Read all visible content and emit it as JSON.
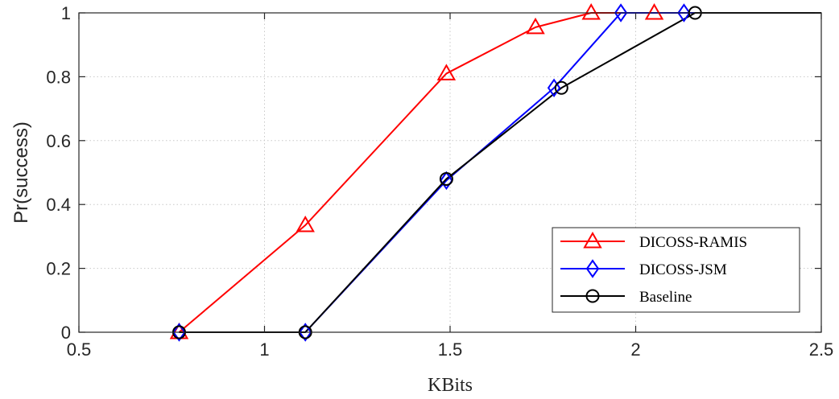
{
  "chart_data": {
    "type": "line",
    "title": "",
    "xlabel": "KBits",
    "ylabel": "Pr(success)",
    "xlim": [
      0.5,
      2.5
    ],
    "ylim": [
      0,
      1
    ],
    "xticks": [
      0.5,
      1,
      1.5,
      2,
      2.5
    ],
    "xtick_labels": [
      "0.5",
      "1",
      "1.5",
      "2",
      "2.5"
    ],
    "yticks": [
      0,
      0.2,
      0.4,
      0.6,
      0.8,
      1
    ],
    "ytick_labels": [
      "0",
      "0.2",
      "0.4",
      "0.6",
      "0.8",
      "1"
    ],
    "grid": true,
    "legend_position": "bottom-right",
    "series": [
      {
        "name": "DICOSS-RAMIS",
        "color": "#ff0000",
        "marker": "triangle",
        "x": [
          0.77,
          1.11,
          1.49,
          1.73,
          1.88,
          2.05,
          2.16,
          2.5
        ],
        "y": [
          0,
          0.335,
          0.81,
          0.955,
          1,
          1,
          1,
          1
        ],
        "marker_x": [
          0.77,
          1.11,
          1.49,
          1.73,
          1.88,
          2.05
        ],
        "marker_y": [
          0,
          0.335,
          0.81,
          0.955,
          1,
          1
        ]
      },
      {
        "name": "DICOSS-JSM",
        "color": "#0000ff",
        "marker": "diamond",
        "x": [
          0.77,
          1.11,
          1.49,
          1.78,
          1.96,
          2.13,
          2.16,
          2.5
        ],
        "y": [
          0,
          0,
          0.475,
          0.765,
          1,
          1,
          1,
          1
        ],
        "marker_x": [
          0.77,
          1.11,
          1.49,
          1.78,
          1.96,
          2.13
        ],
        "marker_y": [
          0,
          0,
          0.475,
          0.765,
          1,
          1
        ]
      },
      {
        "name": "Baseline",
        "color": "#000000",
        "marker": "circle",
        "x": [
          0.77,
          1.11,
          1.49,
          1.8,
          2.16,
          2.5
        ],
        "y": [
          0,
          0,
          0.48,
          0.765,
          1,
          1
        ],
        "marker_x": [
          0.77,
          1.11,
          1.49,
          1.8,
          2.16
        ],
        "marker_y": [
          0,
          0,
          0.48,
          0.765,
          1
        ]
      }
    ]
  }
}
